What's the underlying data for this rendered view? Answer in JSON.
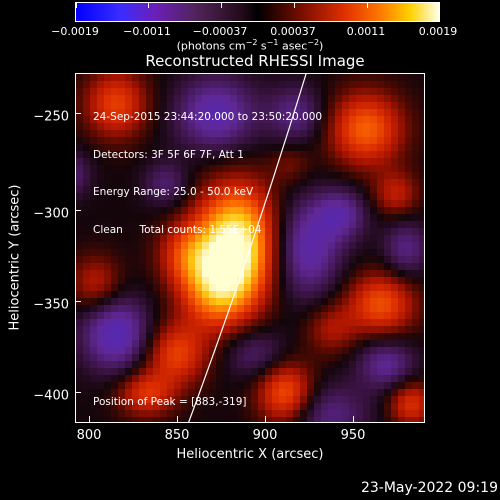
{
  "colorbar": {
    "ticks": [
      "−0.0019",
      "−0.0011",
      "−0.00037",
      "0.00037",
      "0.0011",
      "0.0019"
    ],
    "unit_prefix": "(photons cm",
    "unit_exp1": "−2",
    "unit_mid": " s",
    "unit_exp2": "−1",
    "unit_mid2": " asec",
    "unit_exp3": "−2",
    "unit_suffix": ")"
  },
  "title": "Reconstructed RHESSI Image",
  "annotations": {
    "line1": "24-Sep-2015 23:44:20.000 to 23:50:20.000",
    "line2": "Detectors: 3F 5F 6F 7F, Att 1",
    "line3": "Energy Range: 25.0 - 50.0 keV",
    "line4": "Clean     Total counts: 1.55E+04",
    "peak": "Position of Peak = [883,-319]"
  },
  "axes": {
    "x_title": "Heliocentric X (arcsec)",
    "y_title": "Heliocentric Y (arcsec)",
    "x_ticks": [
      "800",
      "850",
      "900",
      "950"
    ],
    "y_ticks": [
      "−250",
      "−300",
      "−350",
      "−400"
    ]
  },
  "timestamp": "23-May-2022 09:19"
}
